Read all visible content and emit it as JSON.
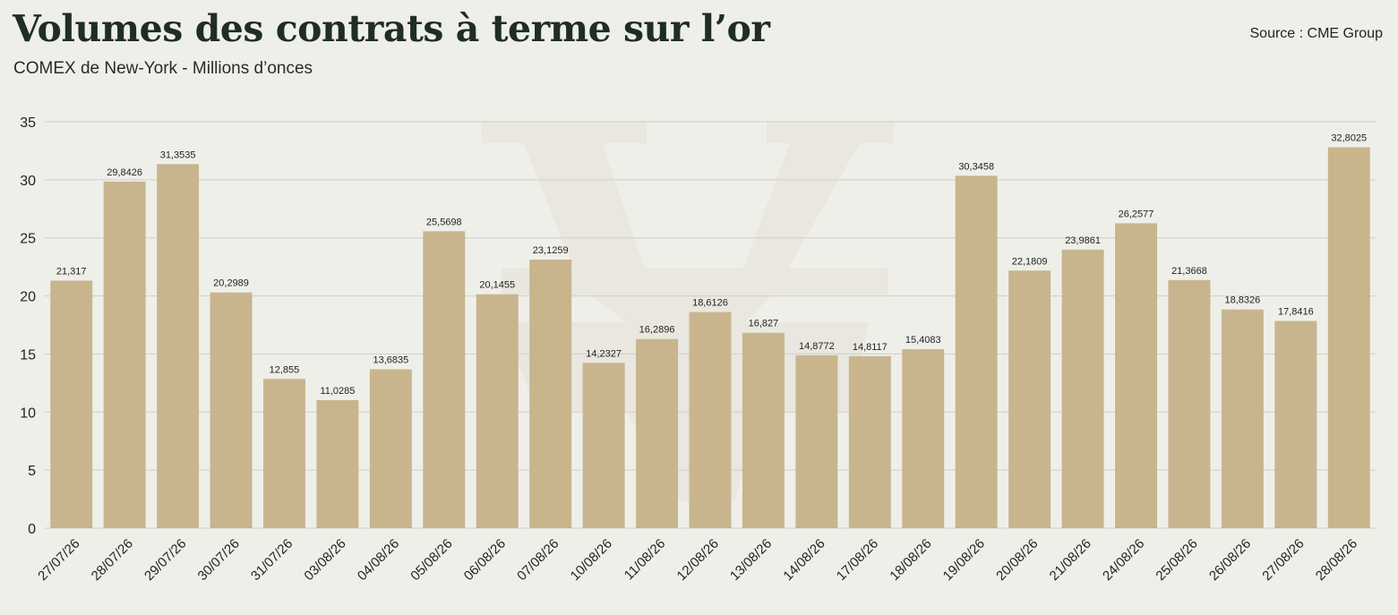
{
  "header": {
    "title": "Volumes des contrats à terme sur l’or",
    "subtitle": "COMEX de New-York - Millions d’onces",
    "source": "Source : CME Group"
  },
  "colors": {
    "bar": "#c8b58e",
    "background": "#efefe9",
    "watermark": "#e6e4dc"
  },
  "chart_data": {
    "type": "bar",
    "title": "Volumes des contrats à terme sur l’or",
    "subtitle": "COMEX de New-York - Millions d’onces",
    "xlabel": "",
    "ylabel": "",
    "ylim": [
      0,
      35
    ],
    "yticks": [
      0,
      5,
      10,
      15,
      20,
      25,
      30,
      35
    ],
    "grid": true,
    "categories": [
      "27/07/26",
      "28/07/26",
      "29/07/26",
      "30/07/26",
      "31/07/26",
      "03/08/26",
      "04/08/26",
      "05/08/26",
      "06/08/26",
      "07/08/26",
      "10/08/26",
      "11/08/26",
      "12/08/26",
      "13/08/26",
      "14/08/26",
      "17/08/26",
      "18/08/26",
      "19/08/26",
      "20/08/26",
      "21/08/26",
      "24/08/26",
      "25/08/26",
      "26/08/26",
      "27/08/26",
      "28/08/26"
    ],
    "values": [
      21.317,
      29.8426,
      31.3535,
      20.2989,
      12.855,
      11.0285,
      13.6835,
      25.5698,
      20.1455,
      23.1259,
      14.2327,
      16.2896,
      18.6126,
      16.827,
      14.8772,
      14.8117,
      15.4083,
      30.3458,
      22.1809,
      23.9861,
      26.2577,
      21.3668,
      18.8326,
      17.8416,
      32.8025
    ],
    "data_labels": [
      "21,317",
      "29,8426",
      "31,3535",
      "20,2989",
      "12,855",
      "11,0285",
      "13,6835",
      "25,5698",
      "20,1455",
      "23,1259",
      "14,2327",
      "16,2896",
      "18,6126",
      "16,827",
      "14,8772",
      "14,8117",
      "15,4083",
      "30,3458",
      "22,1809",
      "23,9861",
      "26,2577",
      "21,3668",
      "18,8326",
      "17,8416",
      "32,8025"
    ]
  }
}
